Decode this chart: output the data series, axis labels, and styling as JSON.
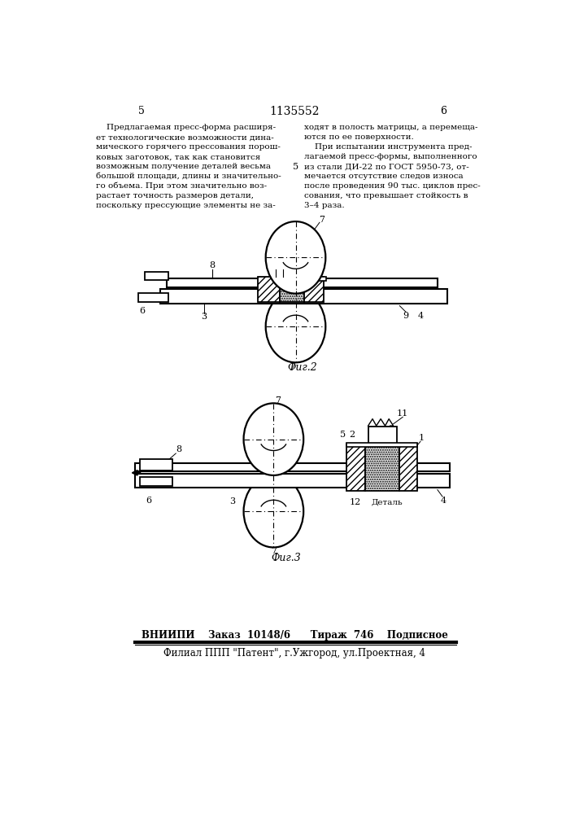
{
  "page_number_left": "5",
  "page_number_center": "1135552",
  "page_number_right": "6",
  "line_number_5": "5",
  "left_column_text": [
    "    Предлагаемая пресс-форма расширя-",
    "ет технологические возможности дина-",
    "мического горячего прессования порош-",
    "ковых заготовок, так как становится",
    "возможным получение деталей весьма",
    "большой площади, длины и значительно-",
    "го объема. При этом значительно воз-",
    "растает точность размеров детали,",
    "поскольку прессующие элементы не за-"
  ],
  "right_column_text": [
    "ходят в полость матрицы, а перемеща-",
    "ются по ее поверхности.",
    "    При испытании инструмента пред-",
    "лагаемой пресс-формы, выполненного",
    "из стали ДИ-22 по ГОСТ 5950-73, от-",
    "мечается отсутствие следов износа",
    "после проведения 90 тыс. циклов прес-",
    "сования, что превышает стойкость в",
    "3–4 раза."
  ],
  "fig2_label": "Фиг.2",
  "fig3_label": "Фиг.3",
  "footer_line1": "ВНИИПИ    Заказ  10148/6      Тираж  746    Подписное",
  "footer_line2": "Филиал ППП \"Патент\", г.Ужгород, ул.Проектная, 4",
  "bg_color": "#ffffff",
  "text_color": "#000000"
}
